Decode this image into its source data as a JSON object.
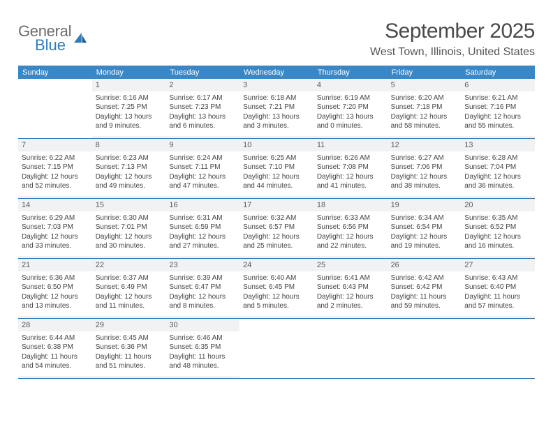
{
  "logo": {
    "primary": "General",
    "secondary": "Blue"
  },
  "title": "September 2025",
  "location": "West Town, Illinois, United States",
  "colors": {
    "header_bg": "#3a87c7",
    "header_text": "#ffffff",
    "border": "#3a7db8",
    "daynum_bg": "#f1f2f3",
    "text": "#444444",
    "logo_gray": "#6c6c6c",
    "logo_blue": "#2f7bbf"
  },
  "weekdays": [
    "Sunday",
    "Monday",
    "Tuesday",
    "Wednesday",
    "Thursday",
    "Friday",
    "Saturday"
  ],
  "weeks": [
    [
      null,
      {
        "n": "1",
        "sr": "Sunrise: 6:16 AM",
        "ss": "Sunset: 7:25 PM",
        "dl": "Daylight: 13 hours and 9 minutes."
      },
      {
        "n": "2",
        "sr": "Sunrise: 6:17 AM",
        "ss": "Sunset: 7:23 PM",
        "dl": "Daylight: 13 hours and 6 minutes."
      },
      {
        "n": "3",
        "sr": "Sunrise: 6:18 AM",
        "ss": "Sunset: 7:21 PM",
        "dl": "Daylight: 13 hours and 3 minutes."
      },
      {
        "n": "4",
        "sr": "Sunrise: 6:19 AM",
        "ss": "Sunset: 7:20 PM",
        "dl": "Daylight: 13 hours and 0 minutes."
      },
      {
        "n": "5",
        "sr": "Sunrise: 6:20 AM",
        "ss": "Sunset: 7:18 PM",
        "dl": "Daylight: 12 hours and 58 minutes."
      },
      {
        "n": "6",
        "sr": "Sunrise: 6:21 AM",
        "ss": "Sunset: 7:16 PM",
        "dl": "Daylight: 12 hours and 55 minutes."
      }
    ],
    [
      {
        "n": "7",
        "sr": "Sunrise: 6:22 AM",
        "ss": "Sunset: 7:15 PM",
        "dl": "Daylight: 12 hours and 52 minutes."
      },
      {
        "n": "8",
        "sr": "Sunrise: 6:23 AM",
        "ss": "Sunset: 7:13 PM",
        "dl": "Daylight: 12 hours and 49 minutes."
      },
      {
        "n": "9",
        "sr": "Sunrise: 6:24 AM",
        "ss": "Sunset: 7:11 PM",
        "dl": "Daylight: 12 hours and 47 minutes."
      },
      {
        "n": "10",
        "sr": "Sunrise: 6:25 AM",
        "ss": "Sunset: 7:10 PM",
        "dl": "Daylight: 12 hours and 44 minutes."
      },
      {
        "n": "11",
        "sr": "Sunrise: 6:26 AM",
        "ss": "Sunset: 7:08 PM",
        "dl": "Daylight: 12 hours and 41 minutes."
      },
      {
        "n": "12",
        "sr": "Sunrise: 6:27 AM",
        "ss": "Sunset: 7:06 PM",
        "dl": "Daylight: 12 hours and 38 minutes."
      },
      {
        "n": "13",
        "sr": "Sunrise: 6:28 AM",
        "ss": "Sunset: 7:04 PM",
        "dl": "Daylight: 12 hours and 36 minutes."
      }
    ],
    [
      {
        "n": "14",
        "sr": "Sunrise: 6:29 AM",
        "ss": "Sunset: 7:03 PM",
        "dl": "Daylight: 12 hours and 33 minutes."
      },
      {
        "n": "15",
        "sr": "Sunrise: 6:30 AM",
        "ss": "Sunset: 7:01 PM",
        "dl": "Daylight: 12 hours and 30 minutes."
      },
      {
        "n": "16",
        "sr": "Sunrise: 6:31 AM",
        "ss": "Sunset: 6:59 PM",
        "dl": "Daylight: 12 hours and 27 minutes."
      },
      {
        "n": "17",
        "sr": "Sunrise: 6:32 AM",
        "ss": "Sunset: 6:57 PM",
        "dl": "Daylight: 12 hours and 25 minutes."
      },
      {
        "n": "18",
        "sr": "Sunrise: 6:33 AM",
        "ss": "Sunset: 6:56 PM",
        "dl": "Daylight: 12 hours and 22 minutes."
      },
      {
        "n": "19",
        "sr": "Sunrise: 6:34 AM",
        "ss": "Sunset: 6:54 PM",
        "dl": "Daylight: 12 hours and 19 minutes."
      },
      {
        "n": "20",
        "sr": "Sunrise: 6:35 AM",
        "ss": "Sunset: 6:52 PM",
        "dl": "Daylight: 12 hours and 16 minutes."
      }
    ],
    [
      {
        "n": "21",
        "sr": "Sunrise: 6:36 AM",
        "ss": "Sunset: 6:50 PM",
        "dl": "Daylight: 12 hours and 13 minutes."
      },
      {
        "n": "22",
        "sr": "Sunrise: 6:37 AM",
        "ss": "Sunset: 6:49 PM",
        "dl": "Daylight: 12 hours and 11 minutes."
      },
      {
        "n": "23",
        "sr": "Sunrise: 6:39 AM",
        "ss": "Sunset: 6:47 PM",
        "dl": "Daylight: 12 hours and 8 minutes."
      },
      {
        "n": "24",
        "sr": "Sunrise: 6:40 AM",
        "ss": "Sunset: 6:45 PM",
        "dl": "Daylight: 12 hours and 5 minutes."
      },
      {
        "n": "25",
        "sr": "Sunrise: 6:41 AM",
        "ss": "Sunset: 6:43 PM",
        "dl": "Daylight: 12 hours and 2 minutes."
      },
      {
        "n": "26",
        "sr": "Sunrise: 6:42 AM",
        "ss": "Sunset: 6:42 PM",
        "dl": "Daylight: 11 hours and 59 minutes."
      },
      {
        "n": "27",
        "sr": "Sunrise: 6:43 AM",
        "ss": "Sunset: 6:40 PM",
        "dl": "Daylight: 11 hours and 57 minutes."
      }
    ],
    [
      {
        "n": "28",
        "sr": "Sunrise: 6:44 AM",
        "ss": "Sunset: 6:38 PM",
        "dl": "Daylight: 11 hours and 54 minutes."
      },
      {
        "n": "29",
        "sr": "Sunrise: 6:45 AM",
        "ss": "Sunset: 6:36 PM",
        "dl": "Daylight: 11 hours and 51 minutes."
      },
      {
        "n": "30",
        "sr": "Sunrise: 6:46 AM",
        "ss": "Sunset: 6:35 PM",
        "dl": "Daylight: 11 hours and 48 minutes."
      },
      null,
      null,
      null,
      null
    ]
  ]
}
